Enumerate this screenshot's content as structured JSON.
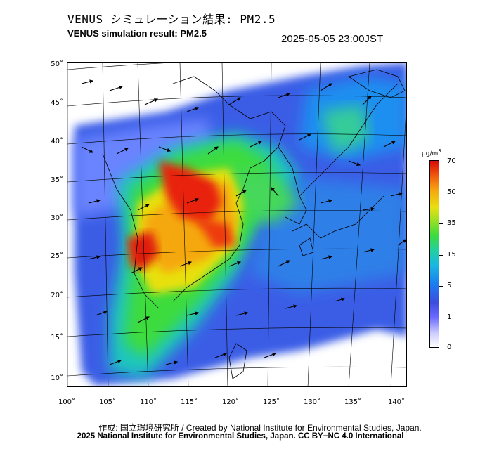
{
  "title_jp": "VENUS シミュレーション結果: PM2.5",
  "title_en": "VENUS simulation result: PM2.5",
  "timestamp": "2025-05-05 23:00JST",
  "axes": {
    "lat_ticks": [
      "50˚",
      "45˚",
      "40˚",
      "35˚",
      "30˚",
      "25˚",
      "20˚",
      "15˚",
      "10˚"
    ],
    "lon_ticks": [
      "100˚",
      "105˚",
      "110˚",
      "115˚",
      "120˚",
      "125˚",
      "130˚",
      "135˚",
      "140˚"
    ]
  },
  "colorbar": {
    "unit_base": "μg/m",
    "unit_exp": "3",
    "labels": [
      "70",
      "50",
      "35",
      "15",
      "5",
      "1",
      "0"
    ],
    "colors": [
      "#d80a0a",
      "#f05a0c",
      "#f5a811",
      "#e8e010",
      "#3ddc3d",
      "#19b8e0",
      "#1b7ef0",
      "#6a6aff",
      "#ffffff"
    ]
  },
  "credits": {
    "line1": "作成: 国立環境研究所 / Created by National Institute for Environmental Studies, Japan.",
    "line2": "2025 National Institute for Environmental Studies, Japan. CC BY−NC 4.0 International"
  }
}
